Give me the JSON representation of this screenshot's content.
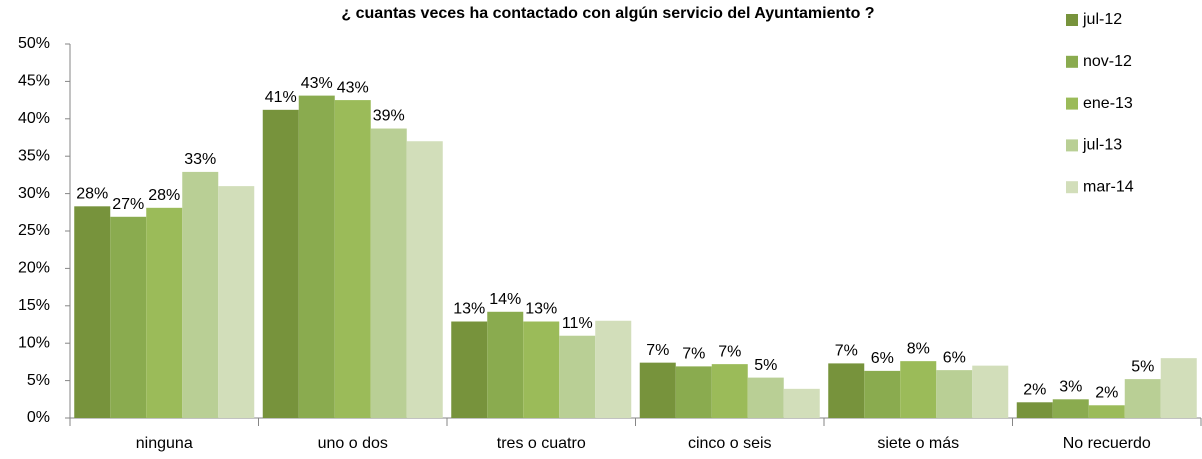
{
  "chart_data": {
    "type": "bar",
    "title": "¿ cuantas veces ha contactado con algún servicio del Ayuntamiento ?",
    "categories": [
      "ninguna",
      "uno o dos",
      "tres o cuatro",
      "cinco o seis",
      "siete o más",
      "No recuerdo"
    ],
    "series": [
      {
        "name": "jul-12",
        "color": "#77933c",
        "values": [
          28.3,
          41.2,
          12.9,
          7.4,
          7.3,
          2.1
        ],
        "value_labels": [
          "28%",
          "41%",
          "13%",
          "7%",
          "7%",
          "2%"
        ]
      },
      {
        "name": "nov-12",
        "color": "#8aab4f",
        "values": [
          26.9,
          43.1,
          14.2,
          6.9,
          6.3,
          2.5
        ],
        "value_labels": [
          "27%",
          "43%",
          "14%",
          "7%",
          "6%",
          "3%"
        ]
      },
      {
        "name": "ene-13",
        "color": "#9bbb59",
        "values": [
          28.1,
          42.5,
          12.9,
          7.2,
          7.6,
          1.7
        ],
        "value_labels": [
          "28%",
          "43%",
          "13%",
          "7%",
          "8%",
          "2%"
        ]
      },
      {
        "name": "jul-13",
        "color": "#b9cf95",
        "values": [
          32.9,
          38.7,
          11.0,
          5.4,
          6.4,
          5.2
        ],
        "value_labels": [
          "33%",
          "39%",
          "11%",
          "5%",
          "6%",
          "5%"
        ]
      },
      {
        "name": "mar-14",
        "color": "#d2deba",
        "values": [
          31.0,
          37.0,
          13.0,
          3.9,
          7.0,
          8.0
        ]
      }
    ],
    "ylim": [
      0,
      50
    ],
    "yticks": [
      {
        "value": 0,
        "label": "0%"
      },
      {
        "value": 5,
        "label": "5%"
      },
      {
        "value": 10,
        "label": "10%"
      },
      {
        "value": 15,
        "label": "15%"
      },
      {
        "value": 20,
        "label": "20%"
      },
      {
        "value": 25,
        "label": "25%"
      },
      {
        "value": 30,
        "label": "30%"
      },
      {
        "value": 35,
        "label": "35%"
      },
      {
        "value": 40,
        "label": "40%"
      },
      {
        "value": 45,
        "label": "45%"
      },
      {
        "value": 50,
        "label": "50%"
      }
    ],
    "legend": "right"
  }
}
